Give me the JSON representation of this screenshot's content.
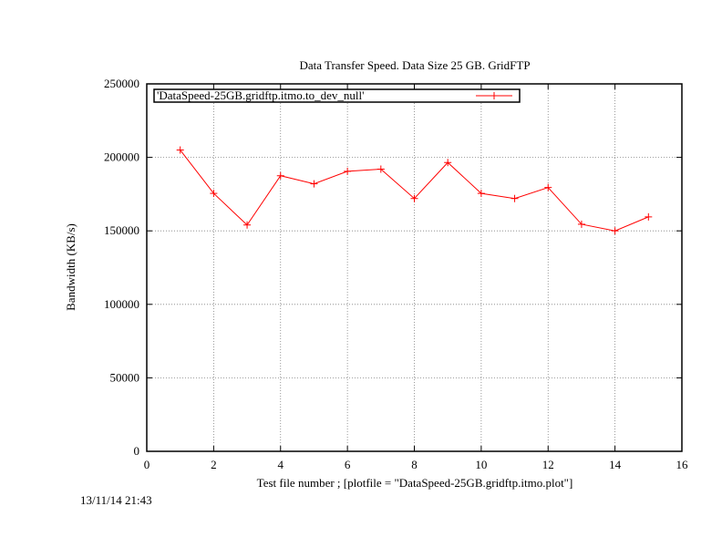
{
  "chart_data": {
    "type": "line",
    "title": "Data Transfer Speed. Data Size 25 GB. GridFTP",
    "xlabel": "Test file number ; [plotfile = \"DataSpeed-25GB.gridftp.itmo.plot\"]",
    "ylabel": "Bandwidth (KB/s)",
    "xlim": [
      0,
      16
    ],
    "ylim": [
      0,
      250000
    ],
    "x_ticks": [
      "0",
      "2",
      "4",
      "6",
      "8",
      "10",
      "12",
      "14",
      "16"
    ],
    "y_ticks": [
      "0",
      "50000",
      "100000",
      "150000",
      "200000",
      "250000"
    ],
    "grid": true,
    "legend_position": "top-left",
    "colors": {
      "series": "#ff0000",
      "grid": "#808080",
      "axes": "#000000"
    },
    "series": [
      {
        "name": "'DataSpeed-25GB.gridftp.itmo.to_dev_null'",
        "marker": "plus",
        "x": [
          1,
          2,
          3,
          4,
          5,
          6,
          7,
          8,
          9,
          10,
          11,
          12,
          13,
          14,
          15
        ],
        "y": [
          205000,
          175500,
          154000,
          187500,
          182000,
          190500,
          192000,
          172000,
          196500,
          175500,
          172000,
          179500,
          154500,
          150000,
          159500
        ]
      }
    ]
  },
  "footer": {
    "timestamp": "13/11/14 21:43"
  }
}
